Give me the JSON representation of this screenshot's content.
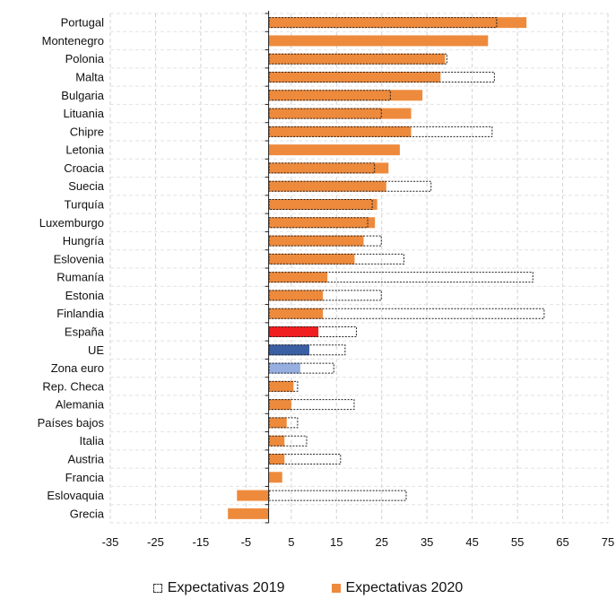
{
  "chart_data": {
    "type": "bar",
    "orientation": "horizontal",
    "categories": [
      "Portugal",
      "Montenegro",
      "Polonia",
      "Malta",
      "Bulgaria",
      "Lituania",
      "Chipre",
      "Letonia",
      "Croacia",
      "Suecia",
      "Turquía",
      "Luxemburgo",
      "Hungría",
      "Eslovenia",
      "Rumanía",
      "Estonia",
      "Finlandia",
      "España",
      "UE",
      "Zona euro",
      "Rep. Checa",
      "Alemania",
      "Países bajos",
      "Italia",
      "Austria",
      "Francia",
      "Eslovaquia",
      "Grecia"
    ],
    "series": [
      {
        "name": "Expectativas 2019",
        "style": "dashed-outline",
        "values": [
          50.5,
          null,
          39.5,
          50,
          27,
          25,
          49.5,
          null,
          23.5,
          36,
          23,
          22,
          25,
          30,
          58.5,
          25,
          61,
          19.5,
          17,
          14.5,
          6.5,
          19,
          6.5,
          8.5,
          16,
          null,
          30.5,
          null
        ]
      },
      {
        "name": "Expectativas 2020",
        "style": "filled",
        "color": "#EE8A3C",
        "values": [
          57,
          48.5,
          39,
          38,
          34,
          31.5,
          31.5,
          29,
          26.5,
          26,
          24,
          23.5,
          21,
          19,
          13,
          12,
          12,
          11,
          9,
          7,
          5.5,
          5,
          4,
          3.5,
          3.5,
          3,
          -7,
          -9
        ]
      }
    ],
    "highlight_colors": {
      "España": "#F01E1E",
      "UE": "#3A5FA3",
      "Zona euro": "#96AEE0"
    },
    "xlim": [
      -35,
      75
    ],
    "x_ticks": [
      "-35",
      "-25",
      "-15",
      "-5",
      "5",
      "15",
      "25",
      "35",
      "45",
      "55",
      "65",
      "75"
    ],
    "grid": true,
    "legend_placement": "bottom"
  },
  "legend": {
    "label_2019": "Expectativas 2019",
    "label_2020": "Expectativas 2020",
    "color_2020": "#EE8A3C"
  }
}
